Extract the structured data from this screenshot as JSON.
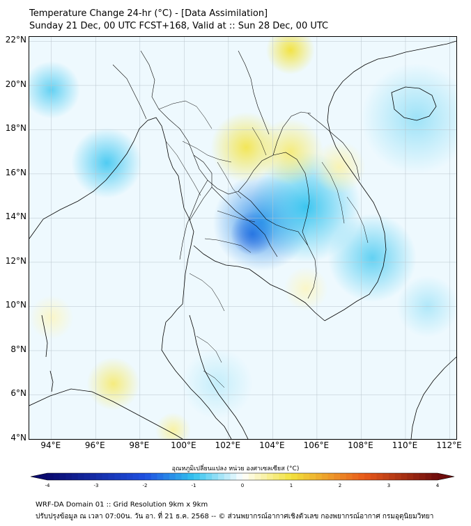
{
  "title": {
    "line1": "Temperature Change 24-hr (°C) - [Data Assimilation]",
    "line2": "Sunday 21 Dec, 00 UTC FCST+168, Valid at :: Sun 28 Dec, 00 UTC"
  },
  "map": {
    "lon_range": [
      93,
      112.3
    ],
    "lat_range": [
      4,
      22.2
    ],
    "lat_labels": [
      "22°N",
      "20°N",
      "18°N",
      "16°N",
      "14°N",
      "12°N",
      "10°N",
      "8°N",
      "6°N",
      "4°N"
    ],
    "lat_values": [
      22,
      20,
      18,
      16,
      14,
      12,
      10,
      8,
      6,
      4
    ],
    "lon_labels": [
      "94°E",
      "96°E",
      "98°E",
      "100°E",
      "102°E",
      "104°E",
      "106°E",
      "108°E",
      "110°E",
      "112°E"
    ],
    "lon_values": [
      94,
      96,
      98,
      100,
      102,
      104,
      106,
      108,
      110,
      112
    ],
    "anomalies": [
      {
        "lon": 103.1,
        "lat": 13.3,
        "value": -2.2,
        "spread": 1.0
      },
      {
        "lon": 103.5,
        "lat": 13.8,
        "value": -1.5,
        "spread": 2.2
      },
      {
        "lon": 105.5,
        "lat": 14.5,
        "value": -1.0,
        "spread": 2.5
      },
      {
        "lon": 96.5,
        "lat": 16.5,
        "value": -0.9,
        "spread": 1.6
      },
      {
        "lon": 94.0,
        "lat": 19.8,
        "value": -0.8,
        "spread": 1.3
      },
      {
        "lon": 108.5,
        "lat": 12.2,
        "value": -0.8,
        "spread": 2.0
      },
      {
        "lon": 110.5,
        "lat": 18.5,
        "value": -0.5,
        "spread": 2.5
      },
      {
        "lon": 102.8,
        "lat": 17.2,
        "value": 0.9,
        "spread": 1.6
      },
      {
        "lon": 104.8,
        "lat": 17.0,
        "value": 0.7,
        "spread": 1.5
      },
      {
        "lon": 104.8,
        "lat": 21.6,
        "value": 1.0,
        "spread": 1.1
      },
      {
        "lon": 107.0,
        "lat": 16.3,
        "value": 0.4,
        "spread": 1.2
      },
      {
        "lon": 96.8,
        "lat": 6.5,
        "value": 0.7,
        "spread": 1.2
      },
      {
        "lon": 94.0,
        "lat": 9.5,
        "value": 0.3,
        "spread": 1.0
      },
      {
        "lon": 105.5,
        "lat": 10.8,
        "value": 0.3,
        "spread": 1.0
      },
      {
        "lon": 99.5,
        "lat": 4.4,
        "value": 0.5,
        "spread": 0.8
      },
      {
        "lon": 111.0,
        "lat": 10.0,
        "value": -0.4,
        "spread": 1.4
      },
      {
        "lon": 101.5,
        "lat": 6.5,
        "value": -0.3,
        "spread": 1.6
      }
    ]
  },
  "colorbar": {
    "title": "อุณหภูมิเปลี่ยนแปลง หน่วย องศาเซลเซียส (°C)",
    "min": -4,
    "max": 4,
    "ticks": [
      "-4",
      "-3",
      "-2",
      "-1",
      "0",
      "1",
      "2",
      "3",
      "4"
    ],
    "tick_values": [
      -4,
      -3,
      -2,
      -1,
      0,
      1,
      2,
      3,
      4
    ]
  },
  "colors": {
    "cold_deep": "#0a0a6e",
    "cold": "#1f4fe0",
    "cool": "#33c3ef",
    "neutral": "#ffffff",
    "warm": "#f2e23c",
    "hot": "#e8591a",
    "hot_deep": "#6e0c0c"
  },
  "footer": {
    "line1": "WRF-DA Domain 01 :: Grid Resolution 9km x 9km",
    "line2": "ปรับปรุงข้อมูล ณ เวลา 07:00น. วัน อา. ที่ 21 ธ.ค. 2568 -- © ส่วนพยากรณ์อากาศเชิงตัวเลข กองพยากรณ์อากาศ กรมอุตุนิยมวิทยา"
  }
}
